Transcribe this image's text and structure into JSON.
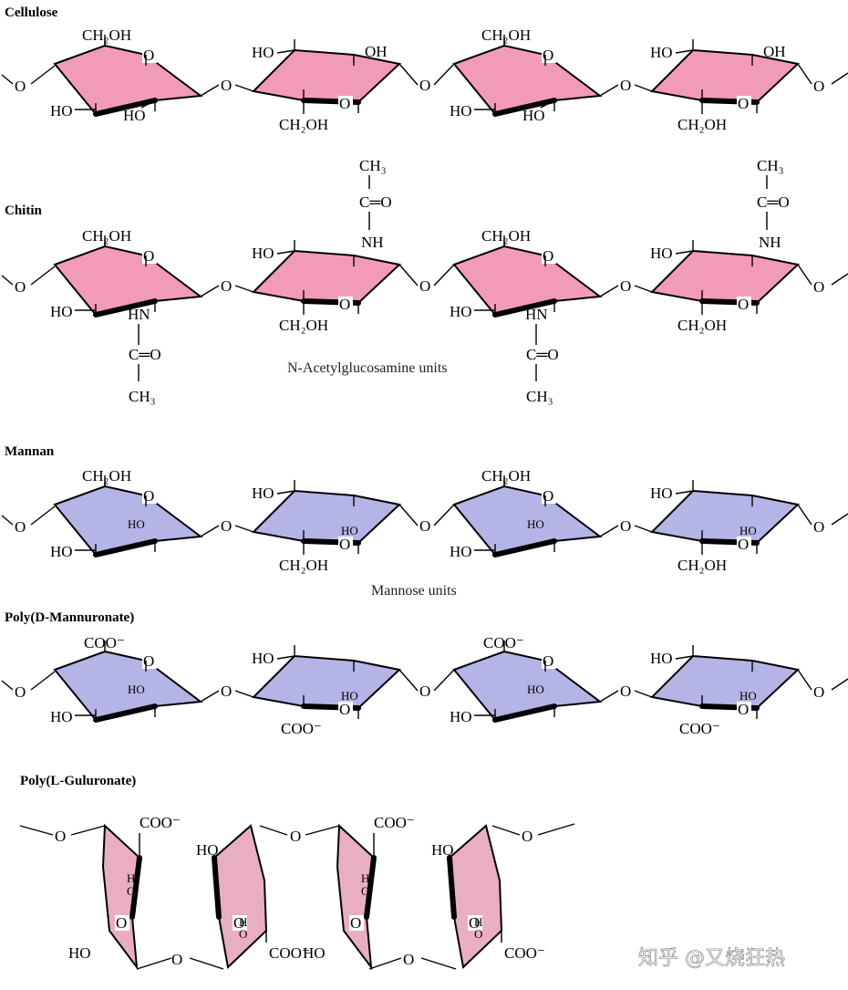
{
  "colors": {
    "pink": "#f29bb7",
    "lavender": "#b4b4e6",
    "rose": "#e9aec0",
    "ink": "#000000"
  },
  "titles": {
    "cellulose": "Cellulose",
    "chitin": "Chitin",
    "mannan": "Mannan",
    "mannuronate": "Poly(D-Mannuronate)",
    "guluronate": "Poly(L-Guluronate)"
  },
  "captions": {
    "chitin": "N-Acetylglucosamine units",
    "mannan": "Mannose units"
  },
  "labels": {
    "O": "O",
    "HO": "HO",
    "OH": "OH",
    "CH2OH": "CH₂OH",
    "NH": "NH",
    "HN": "HN",
    "CO": "C═O",
    "CH3": "CH₃",
    "COO": "COO⁻",
    "H": "H"
  },
  "watermark": "知乎 @又烧狂热"
}
